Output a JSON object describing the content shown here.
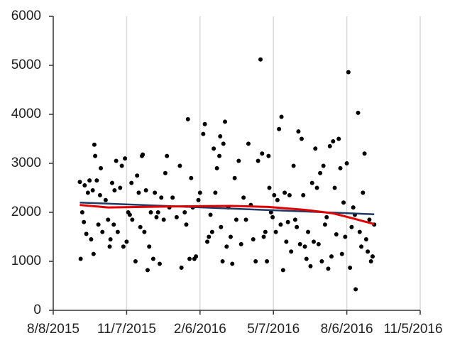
{
  "chart_data": {
    "type": "scatter",
    "xlim": [
      "2015-08-08",
      "2016-11-05"
    ],
    "xticks": [
      {
        "value": "2015-08-08",
        "label": "8/8/2015"
      },
      {
        "value": "2015-11-07",
        "label": "11/7/2015"
      },
      {
        "value": "2016-02-06",
        "label": "2/6/2016"
      },
      {
        "value": "2016-05-07",
        "label": "5/7/2016"
      },
      {
        "value": "2016-08-06",
        "label": "8/6/2016"
      },
      {
        "value": "2016-11-05",
        "label": "11/5/2016"
      }
    ],
    "ylim": [
      0,
      6000
    ],
    "yticks": [
      0,
      1000,
      2000,
      3000,
      4000,
      5000,
      6000
    ],
    "grid": "x",
    "points": {
      "color": "#000000",
      "x": [
        "2015-09-10",
        "2015-09-11",
        "2015-09-13",
        "2015-09-15",
        "2015-09-16",
        "2015-09-18",
        "2015-09-20",
        "2015-09-22",
        "2015-09-24",
        "2015-09-26",
        "2015-09-27",
        "2015-09-28",
        "2015-09-29",
        "2015-10-01",
        "2015-10-03",
        "2015-10-05",
        "2015-10-06",
        "2015-10-08",
        "2015-10-12",
        "2015-10-15",
        "2015-10-17",
        "2015-10-18",
        "2015-10-20",
        "2015-10-22",
        "2015-10-23",
        "2015-10-25",
        "2015-10-27",
        "2015-10-30",
        "2015-11-01",
        "2015-11-03",
        "2015-11-05",
        "2015-11-07",
        "2015-11-09",
        "2015-11-11",
        "2015-11-13",
        "2015-11-14",
        "2015-11-18",
        "2015-11-20",
        "2015-11-22",
        "2015-11-24",
        "2015-11-26",
        "2015-11-27",
        "2015-11-29",
        "2015-12-01",
        "2015-12-03",
        "2015-12-05",
        "2015-12-07",
        "2015-12-10",
        "2015-12-12",
        "2015-12-14",
        "2015-12-16",
        "2015-12-18",
        "2015-12-20",
        "2015-12-23",
        "2015-12-25",
        "2015-12-27",
        "2015-12-30",
        "2016-01-03",
        "2016-01-08",
        "2016-01-12",
        "2016-01-14",
        "2016-01-18",
        "2016-01-20",
        "2016-01-22",
        "2016-01-24",
        "2016-01-26",
        "2016-01-28",
        "2016-01-30",
        "2016-02-01",
        "2016-02-04",
        "2016-02-06",
        "2016-02-10",
        "2016-02-12",
        "2016-02-15",
        "2016-02-17",
        "2016-02-19",
        "2016-02-21",
        "2016-02-23",
        "2016-02-25",
        "2016-02-27",
        "2016-03-01",
        "2016-03-02",
        "2016-03-03",
        "2016-03-05",
        "2016-03-06",
        "2016-03-08",
        "2016-03-10",
        "2016-03-12",
        "2016-03-15",
        "2016-03-17",
        "2016-03-20",
        "2016-03-22",
        "2016-03-25",
        "2016-03-28",
        "2016-03-31",
        "2016-04-03",
        "2016-04-06",
        "2016-04-09",
        "2016-04-12",
        "2016-04-15",
        "2016-04-18",
        "2016-04-21",
        "2016-04-23",
        "2016-04-25",
        "2016-04-27",
        "2016-04-29",
        "2016-05-01",
        "2016-05-02",
        "2016-05-04",
        "2016-05-06",
        "2016-05-08",
        "2016-05-10",
        "2016-05-12",
        "2016-05-14",
        "2016-05-16",
        "2016-05-17",
        "2016-05-19",
        "2016-05-21",
        "2016-05-23",
        "2016-05-25",
        "2016-05-27",
        "2016-05-29",
        "2016-06-01",
        "2016-06-03",
        "2016-06-05",
        "2016-06-07",
        "2016-06-09",
        "2016-06-11",
        "2016-06-13",
        "2016-06-15",
        "2016-06-17",
        "2016-06-19",
        "2016-06-22",
        "2016-06-24",
        "2016-06-26",
        "2016-06-28",
        "2016-06-30",
        "2016-07-02",
        "2016-07-04",
        "2016-07-06",
        "2016-07-08",
        "2016-07-10",
        "2016-07-12",
        "2016-07-14",
        "2016-07-16",
        "2016-07-18",
        "2016-07-20",
        "2016-07-22",
        "2016-07-24",
        "2016-07-27",
        "2016-07-29",
        "2016-07-31",
        "2016-08-02",
        "2016-08-04",
        "2016-08-06",
        "2016-08-08",
        "2016-08-10",
        "2016-08-12",
        "2016-08-14",
        "2016-08-16",
        "2016-08-17",
        "2016-08-20",
        "2016-08-22",
        "2016-08-24",
        "2016-08-26",
        "2016-08-28",
        "2016-08-30",
        "2016-09-01",
        "2016-09-03",
        "2016-09-05",
        "2016-09-07",
        "2016-09-09"
      ],
      "values": [
        2620,
        1050,
        2000,
        1800,
        2550,
        1560,
        2400,
        2650,
        1450,
        2450,
        1150,
        3380,
        3150,
        2650,
        1750,
        2350,
        2900,
        1600,
        2250,
        1850,
        1300,
        1450,
        2600,
        1750,
        2450,
        3050,
        1600,
        2500,
        2950,
        1300,
        3100,
        1400,
        2000,
        1950,
        2600,
        1850,
        1000,
        2750,
        2400,
        1700,
        3150,
        3180,
        1600,
        2450,
        820,
        1300,
        2000,
        1050,
        2400,
        1900,
        2000,
        950,
        2300,
        1850,
        2800,
        3150,
        2100,
        2300,
        1900,
        2950,
        870,
        2000,
        1750,
        3900,
        1050,
        2700,
        2100,
        1050,
        1100,
        2250,
        2400,
        3600,
        3800,
        1400,
        1500,
        1950,
        1600,
        3300,
        2400,
        2900,
        3150,
        3550,
        1700,
        1000,
        3400,
        3850,
        1300,
        2100,
        1500,
        950,
        2700,
        1850,
        3050,
        1350,
        2300,
        1850,
        3400,
        2150,
        1450,
        1000,
        3050,
        5120,
        3200,
        1500,
        1600,
        1000,
        3150,
        2500,
        2000,
        1900,
        2350,
        1600,
        2250,
        3700,
        1750,
        3950,
        820,
        2400,
        1400,
        1800,
        2350,
        1200,
        2950,
        1850,
        1700,
        3650,
        1350,
        3500,
        2350,
        1300,
        1050,
        1600,
        900,
        2600,
        1400,
        3300,
        2500,
        1350,
        2800,
        1000,
        2950,
        1750,
        1900,
        850,
        3350,
        1100,
        3450,
        2500,
        1550,
        3500,
        2900,
        1150,
        2200,
        1500,
        3000,
        4860,
        870,
        1700,
        2100,
        1950,
        430,
        4030,
        1600,
        1300,
        2400,
        3200,
        1450,
        1200,
        1850,
        1000,
        1100,
        1750
      ]
    },
    "trendlines": [
      {
        "color": "#1f3864",
        "x": [
          "2015-09-10",
          "2016-09-09"
        ],
        "values": [
          2200,
          1960
        ]
      },
      {
        "color": "#e00000",
        "x": [
          "2015-09-10",
          "2015-10-15",
          "2016-01-01",
          "2016-03-15",
          "2016-05-01",
          "2016-06-15",
          "2016-07-20",
          "2016-08-15",
          "2016-09-09"
        ],
        "values": [
          2150,
          2100,
          2120,
          2130,
          2110,
          2050,
          1980,
          1870,
          1760
        ]
      }
    ]
  }
}
